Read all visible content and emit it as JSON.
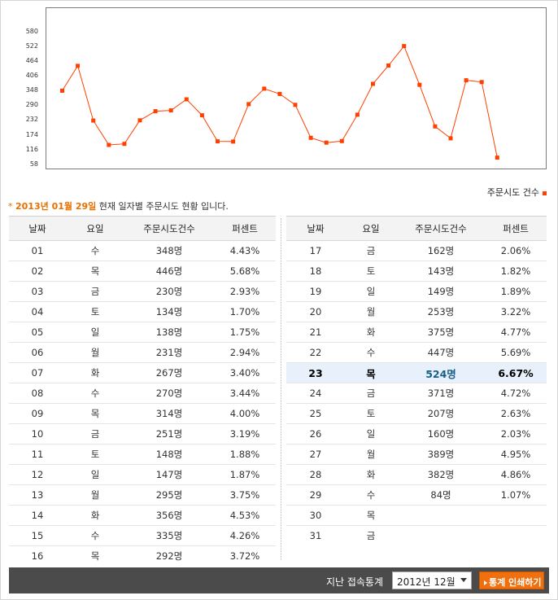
{
  "chart_data": {
    "type": "line",
    "x": [
      "01",
      "02",
      "03",
      "04",
      "05",
      "06",
      "07",
      "08",
      "09",
      "10",
      "11",
      "12",
      "13",
      "14",
      "15",
      "16",
      "17",
      "18",
      "19",
      "20",
      "21",
      "22",
      "23",
      "24",
      "25",
      "26",
      "27",
      "28",
      "29",
      "30",
      "31"
    ],
    "series": [
      {
        "name": "주문시도 건수",
        "values": [
          348,
          446,
          230,
          134,
          138,
          231,
          267,
          270,
          314,
          251,
          148,
          147,
          295,
          356,
          335,
          292,
          162,
          143,
          149,
          253,
          375,
          447,
          524,
          371,
          207,
          160,
          389,
          382,
          84,
          null,
          null
        ]
      }
    ],
    "yticks": [
      58,
      116,
      174,
      232,
      290,
      348,
      406,
      464,
      522,
      580
    ],
    "ylim": [
      0,
      580
    ],
    "color": "#ff4000"
  },
  "legend_label": "주문시도 건수",
  "caption": {
    "star": "*",
    "date": "2013년 01월 29일",
    "text": "현재 일자별 주문시도 현황 입니다."
  },
  "table_headers": [
    "날짜",
    "요일",
    "주문시도건수",
    "퍼센트"
  ],
  "rows_left": [
    {
      "day": "01",
      "weekday": "수",
      "count": "348명",
      "percent": "4.43%",
      "type": "normal"
    },
    {
      "day": "02",
      "weekday": "목",
      "count": "446명",
      "percent": "5.68%",
      "type": "normal"
    },
    {
      "day": "03",
      "weekday": "금",
      "count": "230명",
      "percent": "2.93%",
      "type": "normal"
    },
    {
      "day": "04",
      "weekday": "토",
      "count": "134명",
      "percent": "1.70%",
      "type": "sat"
    },
    {
      "day": "05",
      "weekday": "일",
      "count": "138명",
      "percent": "1.75%",
      "type": "sun"
    },
    {
      "day": "06",
      "weekday": "월",
      "count": "231명",
      "percent": "2.94%",
      "type": "normal"
    },
    {
      "day": "07",
      "weekday": "화",
      "count": "267명",
      "percent": "3.40%",
      "type": "normal"
    },
    {
      "day": "08",
      "weekday": "수",
      "count": "270명",
      "percent": "3.44%",
      "type": "normal"
    },
    {
      "day": "09",
      "weekday": "목",
      "count": "314명",
      "percent": "4.00%",
      "type": "normal"
    },
    {
      "day": "10",
      "weekday": "금",
      "count": "251명",
      "percent": "3.19%",
      "type": "normal"
    },
    {
      "day": "11",
      "weekday": "토",
      "count": "148명",
      "percent": "1.88%",
      "type": "sat"
    },
    {
      "day": "12",
      "weekday": "일",
      "count": "147명",
      "percent": "1.87%",
      "type": "sun"
    },
    {
      "day": "13",
      "weekday": "월",
      "count": "295명",
      "percent": "3.75%",
      "type": "normal"
    },
    {
      "day": "14",
      "weekday": "화",
      "count": "356명",
      "percent": "4.53%",
      "type": "normal"
    },
    {
      "day": "15",
      "weekday": "수",
      "count": "335명",
      "percent": "4.26%",
      "type": "normal"
    },
    {
      "day": "16",
      "weekday": "목",
      "count": "292명",
      "percent": "3.72%",
      "type": "normal"
    }
  ],
  "rows_right": [
    {
      "day": "17",
      "weekday": "금",
      "count": "162명",
      "percent": "2.06%",
      "type": "normal"
    },
    {
      "day": "18",
      "weekday": "토",
      "count": "143명",
      "percent": "1.82%",
      "type": "sat"
    },
    {
      "day": "19",
      "weekday": "일",
      "count": "149명",
      "percent": "1.89%",
      "type": "sun"
    },
    {
      "day": "20",
      "weekday": "월",
      "count": "253명",
      "percent": "3.22%",
      "type": "normal"
    },
    {
      "day": "21",
      "weekday": "화",
      "count": "375명",
      "percent": "4.77%",
      "type": "normal"
    },
    {
      "day": "22",
      "weekday": "수",
      "count": "447명",
      "percent": "5.69%",
      "type": "normal"
    },
    {
      "day": "23",
      "weekday": "목",
      "count": "524명",
      "percent": "6.67%",
      "type": "highlight"
    },
    {
      "day": "24",
      "weekday": "금",
      "count": "371명",
      "percent": "4.72%",
      "type": "normal"
    },
    {
      "day": "25",
      "weekday": "토",
      "count": "207명",
      "percent": "2.63%",
      "type": "sat"
    },
    {
      "day": "26",
      "weekday": "일",
      "count": "160명",
      "percent": "2.03%",
      "type": "sun"
    },
    {
      "day": "27",
      "weekday": "월",
      "count": "389명",
      "percent": "4.95%",
      "type": "normal"
    },
    {
      "day": "28",
      "weekday": "화",
      "count": "382명",
      "percent": "4.86%",
      "type": "normal"
    },
    {
      "day": "29",
      "weekday": "수",
      "count": "84명",
      "percent": "1.07%",
      "type": "normal"
    },
    {
      "day": "30",
      "weekday": "목",
      "count": "",
      "percent": "",
      "type": "normal"
    },
    {
      "day": "31",
      "weekday": "금",
      "count": "",
      "percent": "",
      "type": "normal"
    }
  ],
  "footer": {
    "label": "지난 접속통계",
    "selected_month": "2012년 12월",
    "print_label": "통계 인쇄하기"
  }
}
